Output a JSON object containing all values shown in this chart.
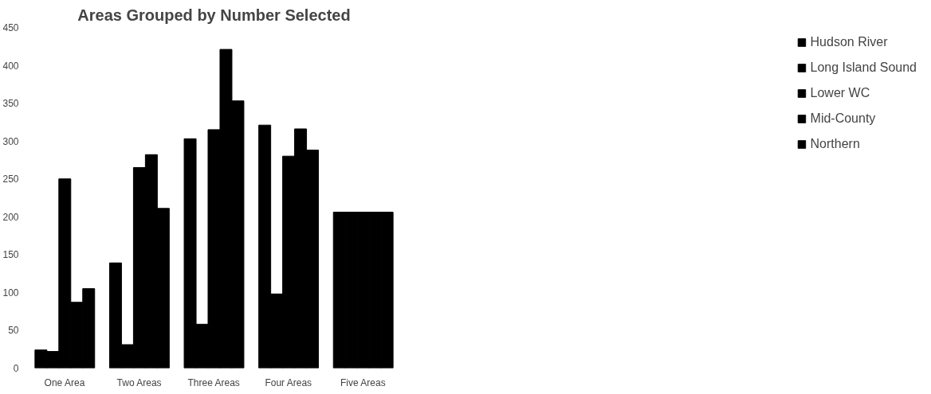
{
  "chart_data": {
    "type": "bar",
    "title": "Areas Grouped by Number Selected",
    "categories": [
      "One Area",
      "Two Areas",
      "Three Areas",
      "Four Areas",
      "Five Areas"
    ],
    "series": [
      {
        "name": "Hudson River",
        "color": "#000000",
        "values": [
          24,
          139,
          303,
          321,
          206
        ]
      },
      {
        "name": "Long Island Sound",
        "color": "#000000",
        "values": [
          22,
          31,
          58,
          98,
          206
        ]
      },
      {
        "name": "Lower WC",
        "color": "#000000",
        "values": [
          250,
          265,
          315,
          280,
          206
        ]
      },
      {
        "name": "Mid-County",
        "color": "#000000",
        "values": [
          87,
          282,
          421,
          316,
          206
        ]
      },
      {
        "name": "Northern",
        "color": "#000000",
        "values": [
          105,
          211,
          353,
          288,
          206
        ]
      }
    ],
    "ylim": [
      0,
      450
    ],
    "yticks": [
      0,
      50,
      100,
      150,
      200,
      250,
      300,
      350,
      400,
      450
    ],
    "grid": false,
    "legend": "right"
  }
}
